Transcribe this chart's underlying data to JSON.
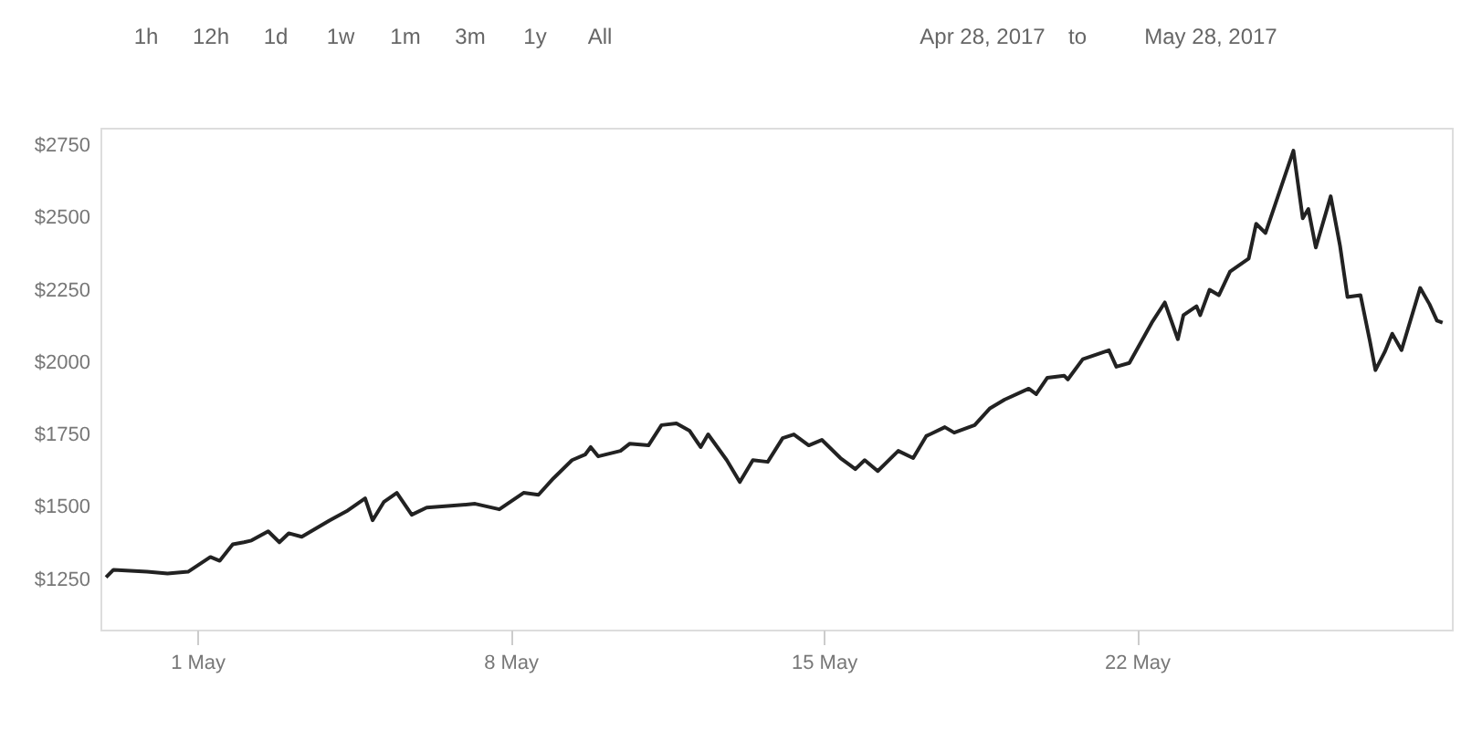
{
  "chart_data": {
    "type": "line",
    "annotations": [
      "1h",
      "12h",
      "1d",
      "1w",
      "1m",
      "3m",
      "1y",
      "All",
      "Apr 28, 2017",
      "to",
      "May 28, 2017"
    ],
    "x": [
      "2017-04-28T23:00",
      "2017-04-29T03:00",
      "2017-04-29T21:00",
      "2017-04-30T08:00",
      "2017-04-30T19:00",
      "2017-05-01T07:00",
      "2017-05-01T12:00",
      "2017-05-01T19:00",
      "2017-05-02T01:00",
      "2017-05-02T05:00",
      "2017-05-02T14:00",
      "2017-05-02T20:00",
      "2017-05-03T01:00",
      "2017-05-03T08:00",
      "2017-05-03T13:00",
      "2017-05-03T23:00",
      "2017-05-04T08:00",
      "2017-05-04T18:00",
      "2017-05-04T22:00",
      "2017-05-05T04:00",
      "2017-05-05T11:00",
      "2017-05-05T19:00",
      "2017-05-06T03:00",
      "2017-05-06T16:00",
      "2017-05-07T05:00",
      "2017-05-07T18:00",
      "2017-05-08T07:00",
      "2017-05-08T15:00",
      "2017-05-08T23:00",
      "2017-05-09T09:00",
      "2017-05-09T16:00",
      "2017-05-09T19:00",
      "2017-05-09T23:00",
      "2017-05-10T11:00",
      "2017-05-10T16:00",
      "2017-05-11T02:00",
      "2017-05-11T09:00",
      "2017-05-11T17:00",
      "2017-05-12T00:00",
      "2017-05-12T06:00",
      "2017-05-12T10:00",
      "2017-05-12T20:00",
      "2017-05-13T03:00",
      "2017-05-13T10:00",
      "2017-05-13T18:00",
      "2017-05-14T02:00",
      "2017-05-14T08:00",
      "2017-05-14T16:00",
      "2017-05-14T23:00",
      "2017-05-15T09:00",
      "2017-05-15T17:00",
      "2017-05-15T22:00",
      "2017-05-16T05:00",
      "2017-05-16T16:00",
      "2017-05-17T00:00",
      "2017-05-17T07:00",
      "2017-05-17T17:00",
      "2017-05-17T22:00",
      "2017-05-18T09:00",
      "2017-05-18T17:00",
      "2017-05-19T01:00",
      "2017-05-19T14:00",
      "2017-05-19T18:00",
      "2017-05-20T00:00",
      "2017-05-20T09:00",
      "2017-05-20T11:00",
      "2017-05-20T19:00",
      "2017-05-21T09:00",
      "2017-05-21T13:00",
      "2017-05-21T20:00",
      "2017-05-22T08:00",
      "2017-05-22T15:00",
      "2017-05-22T22:00",
      "2017-05-23T01:00",
      "2017-05-23T08:00",
      "2017-05-23T10:00",
      "2017-05-23T15:00",
      "2017-05-23T20:00",
      "2017-05-24T02:00",
      "2017-05-24T12:00",
      "2017-05-24T16:00",
      "2017-05-24T21:00",
      "2017-05-25T02:00",
      "2017-05-25T12:00",
      "2017-05-25T17:00",
      "2017-05-25T20:00",
      "2017-05-26T00:00",
      "2017-05-26T08:00",
      "2017-05-26T13:00",
      "2017-05-26T17:00",
      "2017-05-27T00:00",
      "2017-05-27T05:00",
      "2017-05-27T08:00",
      "2017-05-27T13:00",
      "2017-05-27T17:00",
      "2017-05-27T22:00",
      "2017-05-28T08:00",
      "2017-05-28T13:00",
      "2017-05-28T17:00",
      "2017-05-28T20:00"
    ],
    "series": [
      {
        "color": "#222222",
        "values": [
          1256,
          1282,
          1275,
          1269,
          1275,
          1326,
          1313,
          1370,
          1377,
          1383,
          1415,
          1377,
          1408,
          1396,
          1415,
          1453,
          1484,
          1529,
          1453,
          1516,
          1548,
          1472,
          1497,
          1503,
          1510,
          1491,
          1548,
          1541,
          1598,
          1661,
          1680,
          1706,
          1674,
          1693,
          1718,
          1712,
          1782,
          1788,
          1763,
          1706,
          1750,
          1661,
          1585,
          1661,
          1655,
          1737,
          1750,
          1712,
          1731,
          1668,
          1630,
          1661,
          1623,
          1693,
          1668,
          1744,
          1775,
          1756,
          1782,
          1839,
          1870,
          1908,
          1889,
          1946,
          1953,
          1940,
          2010,
          2041,
          1984,
          1997,
          2136,
          2206,
          2079,
          2162,
          2193,
          2162,
          2250,
          2231,
          2313,
          2358,
          2478,
          2446,
          2541,
          2731,
          2497,
          2529,
          2396,
          2573,
          2402,
          2225,
          2231,
          2073,
          1972,
          2035,
          2098,
          2041,
          2256,
          2200,
          2143,
          2136
        ]
      }
    ],
    "xlim": [
      "2017-04-28T20:00",
      "2017-05-29T01:00"
    ],
    "xticks": [
      {
        "value": "2017-05-01",
        "label": "1 May"
      },
      {
        "value": "2017-05-08",
        "label": "8 May"
      },
      {
        "value": "2017-05-15",
        "label": "15 May"
      },
      {
        "value": "2017-05-22",
        "label": "22 May"
      }
    ],
    "ylim": [
      1075,
      2810
    ],
    "yticks": [
      {
        "value": 1250,
        "label": "$1250"
      },
      {
        "value": 1500,
        "label": "$1500"
      },
      {
        "value": 1750,
        "label": "$1750"
      },
      {
        "value": 2000,
        "label": "$2000"
      },
      {
        "value": 2250,
        "label": "$2250"
      },
      {
        "value": 2500,
        "label": "$2500"
      },
      {
        "value": 2750,
        "label": "$2750"
      }
    ],
    "grid": false,
    "marker": "none",
    "line_style": "solid"
  }
}
